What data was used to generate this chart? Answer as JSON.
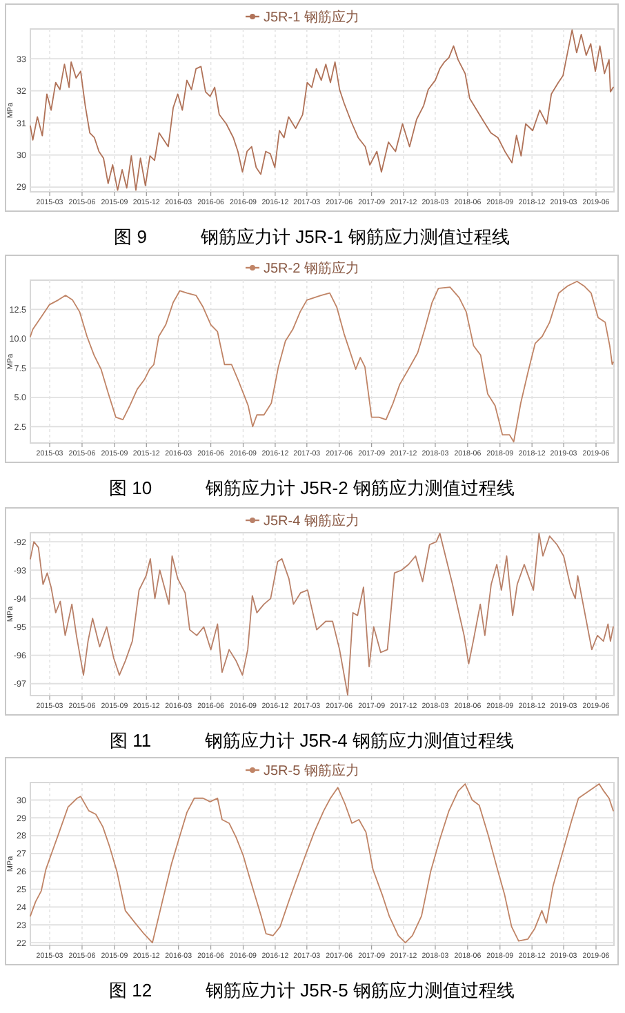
{
  "chart_data": [
    {
      "type": "line",
      "title": "图 9　　　钢筋应力计 J5R-1 钢筋应力测值过程线",
      "ylabel": "MPa",
      "legend": "top",
      "grid": true,
      "xlim": [
        "2015-01-05",
        "2019-07-22"
      ],
      "ylim": [
        28.85,
        33.93
      ],
      "yticks": [
        29,
        30,
        31,
        32,
        33
      ],
      "xticks": [
        "2015-03",
        "2015-06",
        "2015-09",
        "2015-12",
        "2016-03",
        "2016-06",
        "2016-09",
        "2016-12",
        "2017-03",
        "2017-06",
        "2017-09",
        "2017-12",
        "2018-03",
        "2018-06",
        "2018-09",
        "2018-12",
        "2019-03",
        "2019-06"
      ],
      "x": [
        "2015-01-05",
        "2015-01-12",
        "2015-01-25",
        "2015-02-08",
        "2015-02-21",
        "2015-03-05",
        "2015-03-18",
        "2015-03-30",
        "2015-04-12",
        "2015-04-25",
        "2015-05-01",
        "2015-05-15",
        "2015-05-28",
        "2015-06-10",
        "2015-06-23",
        "2015-07-06",
        "2015-07-19",
        "2015-08-01",
        "2015-08-14",
        "2015-08-27",
        "2015-09-10",
        "2015-09-23",
        "2015-10-06",
        "2015-10-19",
        "2015-11-01",
        "2015-11-14",
        "2015-11-28",
        "2015-12-11",
        "2015-12-24",
        "2016-01-06",
        "2016-02-01",
        "2016-02-15",
        "2016-02-28",
        "2016-03-12",
        "2016-03-25",
        "2016-04-07",
        "2016-04-20",
        "2016-05-04",
        "2016-05-17",
        "2016-05-30",
        "2016-06-12",
        "2016-06-25",
        "2016-07-15",
        "2016-08-04",
        "2016-08-17",
        "2016-08-30",
        "2016-09-12",
        "2016-09-25",
        "2016-10-08",
        "2016-10-21",
        "2016-11-04",
        "2016-11-17",
        "2016-11-30",
        "2016-12-13",
        "2016-12-26",
        "2017-01-08",
        "2017-01-28",
        "2017-02-17",
        "2017-03-02",
        "2017-03-15",
        "2017-03-28",
        "2017-04-11",
        "2017-04-24",
        "2017-05-07",
        "2017-05-20",
        "2017-06-02",
        "2017-06-15",
        "2017-07-05",
        "2017-07-25",
        "2017-08-14",
        "2017-08-27",
        "2017-09-16",
        "2017-09-29",
        "2017-10-19",
        "2017-11-08",
        "2017-11-28",
        "2017-12-18",
        "2018-01-07",
        "2018-01-27",
        "2018-02-09",
        "2018-03-01",
        "2018-03-14",
        "2018-03-27",
        "2018-04-09",
        "2018-04-22",
        "2018-05-05",
        "2018-05-25",
        "2018-06-07",
        "2018-06-27",
        "2018-07-17",
        "2018-08-06",
        "2018-08-26",
        "2018-09-15",
        "2018-10-05",
        "2018-10-18",
        "2018-10-31",
        "2018-11-13",
        "2018-12-03",
        "2018-12-23",
        "2019-01-12",
        "2019-01-25",
        "2019-02-14",
        "2019-02-27",
        "2019-03-12",
        "2019-03-25",
        "2019-04-07",
        "2019-04-20",
        "2019-05-04",
        "2019-05-17",
        "2019-05-30",
        "2019-06-12",
        "2019-06-25",
        "2019-07-08",
        "2019-07-12",
        "2019-07-20"
      ],
      "series": [
        {
          "name": "J5R-1 钢筋应力",
          "color": "#b07258",
          "values": [
            30.9,
            30.47,
            31.19,
            30.6,
            31.9,
            31.4,
            32.26,
            32.04,
            32.83,
            32.11,
            32.9,
            32.4,
            32.61,
            31.54,
            30.69,
            30.54,
            30.11,
            29.9,
            29.11,
            29.69,
            28.9,
            29.54,
            28.97,
            29.97,
            28.9,
            29.9,
            29.04,
            29.97,
            29.83,
            30.69,
            30.26,
            31.47,
            31.9,
            31.4,
            32.33,
            32.04,
            32.69,
            32.76,
            31.97,
            31.83,
            32.11,
            31.26,
            30.97,
            30.54,
            30.11,
            29.47,
            30.11,
            30.26,
            29.61,
            29.4,
            30.11,
            30.04,
            29.61,
            30.76,
            30.54,
            31.19,
            30.83,
            31.26,
            32.26,
            32.11,
            32.69,
            32.33,
            32.83,
            32.26,
            32.9,
            32.04,
            31.61,
            31.04,
            30.54,
            30.26,
            29.69,
            30.11,
            29.47,
            30.4,
            30.11,
            30.97,
            30.26,
            31.11,
            31.54,
            32.04,
            32.33,
            32.69,
            32.9,
            33.04,
            33.4,
            32.97,
            32.54,
            31.76,
            31.4,
            31.04,
            30.69,
            30.54,
            30.11,
            29.76,
            30.61,
            29.97,
            30.97,
            30.76,
            31.4,
            30.97,
            31.9,
            32.26,
            32.47,
            33.19,
            33.9,
            33.19,
            33.76,
            33.11,
            33.47,
            32.61,
            33.4,
            32.54,
            32.97,
            31.97,
            32.11
          ]
        }
      ]
    },
    {
      "type": "line",
      "title": "图 10　　　钢筋应力计 J5R-2 钢筋应力测值过程线",
      "ylabel": "MPa",
      "legend": "top",
      "grid": true,
      "xlim": [
        "2015-01-05",
        "2019-07-22"
      ],
      "ylim": [
        1.1,
        15
      ],
      "yticks": [
        {
          "value": 2.5,
          "label": "2.5"
        },
        {
          "value": 5,
          "label": "5.0"
        },
        {
          "value": 7.5,
          "label": "7.5"
        },
        {
          "value": 10,
          "label": "10.0"
        },
        {
          "value": 12.5,
          "label": "12.5"
        }
      ],
      "xticks": [
        "2015-03",
        "2015-06",
        "2015-09",
        "2015-12",
        "2016-03",
        "2016-06",
        "2016-09",
        "2016-12",
        "2017-03",
        "2017-06",
        "2017-09",
        "2017-12",
        "2018-03",
        "2018-06",
        "2018-09",
        "2018-12",
        "2019-03",
        "2019-06"
      ],
      "x": [
        "2015-01-05",
        "2015-01-12",
        "2015-02-08",
        "2015-02-28",
        "2015-03-25",
        "2015-04-15",
        "2015-05-05",
        "2015-05-25",
        "2015-06-15",
        "2015-07-05",
        "2015-07-25",
        "2015-08-15",
        "2015-09-05",
        "2015-09-25",
        "2015-10-15",
        "2015-11-05",
        "2015-11-25",
        "2015-12-10",
        "2015-12-22",
        "2016-01-05",
        "2016-01-25",
        "2016-02-15",
        "2016-03-05",
        "2016-03-25",
        "2016-04-20",
        "2016-05-10",
        "2016-06-01",
        "2016-06-20",
        "2016-07-10",
        "2016-07-30",
        "2016-08-20",
        "2016-09-15",
        "2016-09-28",
        "2016-10-10",
        "2016-10-30",
        "2016-11-20",
        "2016-12-10",
        "2016-12-30",
        "2017-01-20",
        "2017-02-10",
        "2017-03-01",
        "2017-04-10",
        "2017-05-05",
        "2017-05-25",
        "2017-06-15",
        "2017-07-05",
        "2017-07-18",
        "2017-07-31",
        "2017-08-13",
        "2017-09-01",
        "2017-09-22",
        "2017-10-12",
        "2017-11-01",
        "2017-11-20",
        "2017-12-15",
        "2018-01-10",
        "2018-01-30",
        "2018-02-20",
        "2018-03-10",
        "2018-04-12",
        "2018-05-08",
        "2018-05-28",
        "2018-06-18",
        "2018-07-08",
        "2018-07-28",
        "2018-08-18",
        "2018-09-08",
        "2018-09-28",
        "2018-10-10",
        "2018-10-30",
        "2018-11-20",
        "2018-12-10",
        "2018-12-30",
        "2019-01-20",
        "2019-02-15",
        "2019-03-12",
        "2019-04-08",
        "2019-04-28",
        "2019-05-18",
        "2019-06-07",
        "2019-06-27",
        "2019-07-10",
        "2019-07-17",
        "2019-07-20"
      ],
      "series": [
        {
          "name": "J5R-2 钢筋应力",
          "color": "#c08466",
          "values": [
            10.2,
            10.8,
            12,
            12.9,
            13.3,
            13.7,
            13.3,
            12.3,
            10.2,
            8.6,
            7.4,
            5.3,
            3.3,
            3.1,
            4.3,
            5.7,
            6.5,
            7.4,
            7.8,
            10.2,
            11.2,
            13.1,
            14.1,
            13.9,
            13.7,
            12.7,
            11.2,
            10.6,
            7.8,
            7.8,
            6.3,
            4.3,
            2.5,
            3.5,
            3.5,
            4.5,
            7.6,
            9.8,
            10.8,
            12.3,
            13.3,
            13.7,
            13.9,
            12.7,
            10.4,
            8.6,
            7.4,
            8.4,
            7.6,
            3.3,
            3.3,
            3.1,
            4.5,
            6.1,
            7.4,
            8.8,
            10.8,
            13.1,
            14.3,
            14.4,
            13.5,
            12.3,
            9.4,
            8.6,
            5.3,
            4.3,
            1.8,
            1.8,
            1.2,
            4.5,
            7.2,
            9.6,
            10.2,
            11.4,
            13.9,
            14.5,
            14.9,
            14.5,
            13.9,
            11.8,
            11.4,
            9.4,
            7.8,
            8
          ]
        }
      ]
    },
    {
      "type": "line",
      "title": "图 11　　　钢筋应力计 J5R-4 钢筋应力测值过程线",
      "ylabel": "MPa",
      "legend": "top",
      "grid": true,
      "xlim": [
        "2015-01-05",
        "2019-07-22"
      ],
      "ylim": [
        -97.42,
        -91.68
      ],
      "yticks": [
        {
          "value": -97,
          "label": "-97"
        },
        {
          "value": -96,
          "label": "-96"
        },
        {
          "value": -95,
          "label": "-95"
        },
        {
          "value": -94,
          "label": "-94"
        },
        {
          "value": -93,
          "label": "-93"
        },
        {
          "value": -92,
          "label": "-92"
        }
      ],
      "xticks": [
        "2015-03",
        "2015-06",
        "2015-09",
        "2015-12",
        "2016-03",
        "2016-06",
        "2016-09",
        "2016-12",
        "2017-03",
        "2017-06",
        "2017-09",
        "2017-12",
        "2018-03",
        "2018-06",
        "2018-09",
        "2018-12",
        "2019-03",
        "2019-06"
      ],
      "x": [
        "2015-01-05",
        "2015-01-15",
        "2015-01-28",
        "2015-02-10",
        "2015-02-22",
        "2015-03-05",
        "2015-03-18",
        "2015-03-31",
        "2015-04-14",
        "2015-05-03",
        "2015-05-16",
        "2015-06-05",
        "2015-06-18",
        "2015-07-01",
        "2015-07-21",
        "2015-08-10",
        "2015-08-30",
        "2015-09-15",
        "2015-10-02",
        "2015-10-22",
        "2015-11-10",
        "2015-11-30",
        "2015-12-12",
        "2015-12-25",
        "2016-01-08",
        "2016-02-03",
        "2016-02-12",
        "2016-02-28",
        "2016-03-20",
        "2016-04-02",
        "2016-04-22",
        "2016-05-12",
        "2016-06-01",
        "2016-06-20",
        "2016-07-03",
        "2016-07-23",
        "2016-08-12",
        "2016-08-30",
        "2016-09-14",
        "2016-09-27",
        "2016-10-10",
        "2016-10-30",
        "2016-11-18",
        "2016-12-08",
        "2016-12-20",
        "2017-01-09",
        "2017-01-22",
        "2017-02-11",
        "2017-03-03",
        "2017-03-29",
        "2017-04-24",
        "2017-05-13",
        "2017-06-02",
        "2017-06-15",
        "2017-06-25",
        "2017-07-10",
        "2017-07-23",
        "2017-08-09",
        "2017-08-25",
        "2017-09-07",
        "2017-09-27",
        "2017-10-16",
        "2017-11-05",
        "2017-11-25",
        "2017-12-15",
        "2018-01-04",
        "2018-01-24",
        "2018-02-13",
        "2018-03-04",
        "2018-03-14",
        "2018-03-30",
        "2018-04-19",
        "2018-05-09",
        "2018-05-22",
        "2018-06-04",
        "2018-06-17",
        "2018-07-07",
        "2018-07-20",
        "2018-08-07",
        "2018-08-23",
        "2018-09-05",
        "2018-09-20",
        "2018-10-07",
        "2018-10-20",
        "2018-11-09",
        "2018-12-05",
        "2018-12-21",
        "2019-01-01",
        "2019-01-20",
        "2019-02-10",
        "2019-03-01",
        "2019-03-21",
        "2019-04-03",
        "2019-04-10",
        "2019-05-20",
        "2019-06-05",
        "2019-06-22",
        "2019-07-05",
        "2019-07-12",
        "2019-07-20"
      ],
      "series": [
        {
          "name": "J5R-4 钢筋应力",
          "color": "#b98068",
          "values": [
            -92.6,
            -92,
            -92.2,
            -93.5,
            -93.1,
            -93.6,
            -94.5,
            -94.1,
            -95.3,
            -94.2,
            -95.3,
            -96.7,
            -95.5,
            -94.7,
            -95.7,
            -95,
            -96.1,
            -96.7,
            -96.2,
            -95.5,
            -93.7,
            -93.2,
            -92.6,
            -94,
            -93,
            -94.2,
            -92.5,
            -93.3,
            -93.8,
            -95.1,
            -95.3,
            -95,
            -95.8,
            -94.9,
            -96.6,
            -95.8,
            -96.2,
            -96.7,
            -95.8,
            -93.9,
            -94.5,
            -94.2,
            -94,
            -92.7,
            -92.6,
            -93.3,
            -94.2,
            -93.8,
            -93.7,
            -95.1,
            -94.8,
            -94.8,
            -95.8,
            -96.7,
            -97.4,
            -94.5,
            -94.6,
            -93.6,
            -96.4,
            -95,
            -95.9,
            -95.8,
            -93.1,
            -93,
            -92.8,
            -92.5,
            -93.4,
            -92.1,
            -92,
            -91.7,
            -92.5,
            -93.5,
            -94.6,
            -95.3,
            -96.3,
            -95.5,
            -94.2,
            -95.3,
            -93.5,
            -92.8,
            -93.7,
            -92.5,
            -94.6,
            -93.5,
            -92.8,
            -93.7,
            -91.7,
            -92.5,
            -91.8,
            -92.1,
            -92.5,
            -93.6,
            -94,
            -93.2,
            -95.8,
            -95.3,
            -95.5,
            -94.9,
            -95.5,
            -95
          ]
        }
      ]
    },
    {
      "type": "line",
      "title": "图 12　　　钢筋应力计 J5R-5 钢筋应力测值过程线",
      "ylabel": "MPa",
      "legend": "top",
      "grid": true,
      "xlim": [
        "2015-01-05",
        "2019-07-22"
      ],
      "ylim": [
        21.85,
        30.98
      ],
      "yticks": [
        22,
        23,
        24,
        25,
        26,
        27,
        28,
        29,
        30
      ],
      "xticks": [
        "2015-03",
        "2015-06",
        "2015-09",
        "2015-12",
        "2016-03",
        "2016-06",
        "2016-09",
        "2016-12",
        "2017-03",
        "2017-06",
        "2017-09",
        "2017-12",
        "2018-03",
        "2018-06",
        "2018-09",
        "2018-12",
        "2019-03",
        "2019-06"
      ],
      "x": [
        "2015-01-05",
        "2015-01-20",
        "2015-02-05",
        "2015-02-18",
        "2015-03-08",
        "2015-03-28",
        "2015-04-22",
        "2015-05-18",
        "2015-05-28",
        "2015-06-20",
        "2015-07-10",
        "2015-07-30",
        "2015-08-18",
        "2015-09-08",
        "2015-10-02",
        "2015-10-30",
        "2015-11-24",
        "2015-12-18",
        "2016-01-15",
        "2016-02-10",
        "2016-03-02",
        "2016-03-25",
        "2016-04-15",
        "2016-05-10",
        "2016-05-30",
        "2016-06-20",
        "2016-07-03",
        "2016-07-23",
        "2016-08-12",
        "2016-09-01",
        "2016-09-20",
        "2016-10-22",
        "2016-11-05",
        "2016-11-25",
        "2016-12-15",
        "2017-01-10",
        "2017-01-30",
        "2017-02-25",
        "2017-03-22",
        "2017-04-18",
        "2017-05-07",
        "2017-05-28",
        "2017-06-17",
        "2017-07-07",
        "2017-07-27",
        "2017-08-16",
        "2017-09-05",
        "2017-10-01",
        "2017-10-21",
        "2017-11-16",
        "2017-12-06",
        "2017-12-26",
        "2018-01-21",
        "2018-02-16",
        "2018-03-14",
        "2018-04-09",
        "2018-05-05",
        "2018-05-25",
        "2018-06-14",
        "2018-07-04",
        "2018-07-30",
        "2018-08-25",
        "2018-09-14",
        "2018-10-04",
        "2018-10-24",
        "2018-11-19",
        "2018-12-09",
        "2018-12-29",
        "2019-01-11",
        "2019-01-30",
        "2019-02-25",
        "2019-03-23",
        "2019-04-12",
        "2019-06-10",
        "2019-06-23",
        "2019-07-08",
        "2019-07-20"
      ],
      "series": [
        {
          "name": "J5R-5 钢筋应力",
          "color": "#c08466",
          "values": [
            23.5,
            24.3,
            24.9,
            26.1,
            27.1,
            28.2,
            29.6,
            30.1,
            30.2,
            29.4,
            29.2,
            28.5,
            27.4,
            26,
            23.8,
            23.1,
            22.5,
            22,
            24.3,
            26.4,
            27.8,
            29.3,
            30.1,
            30.1,
            29.9,
            30.1,
            28.9,
            28.7,
            27.9,
            26.9,
            25.6,
            23.5,
            22.5,
            22.4,
            22.9,
            24.4,
            25.5,
            26.9,
            28.2,
            29.4,
            30.1,
            30.7,
            29.8,
            28.7,
            28.9,
            28.2,
            26.1,
            24.7,
            23.5,
            22.4,
            22,
            22.4,
            23.5,
            26,
            27.8,
            29.4,
            30.5,
            30.9,
            30,
            29.7,
            28,
            26.1,
            24.7,
            22.9,
            22.1,
            22.2,
            22.8,
            23.8,
            23.1,
            25.2,
            27,
            28.8,
            30.1,
            30.9,
            30.5,
            30.1,
            29.4
          ]
        }
      ]
    }
  ]
}
